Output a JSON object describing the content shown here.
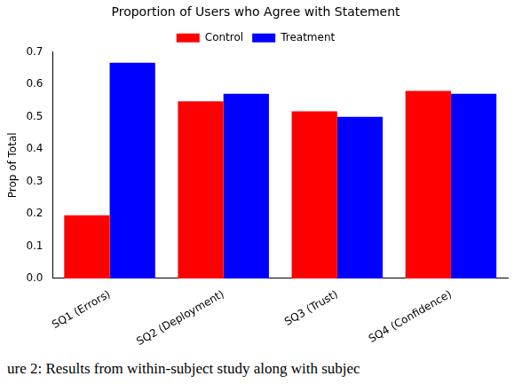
{
  "chart_data": {
    "type": "bar",
    "title": "Proportion of Users who Agree with Statement",
    "y_label": "Prop of Total",
    "categories": [
      "SQ1 (Errors)",
      "SQ2 (Deployment)",
      "SQ3 (Trust)",
      "SQ4 (Confidence)"
    ],
    "series": [
      {
        "name": "Control",
        "color": "#ff0000",
        "values": [
          0.195,
          0.548,
          0.517,
          0.58
        ]
      },
      {
        "name": "Treatment",
        "color": "#0000ff",
        "values": [
          0.667,
          0.571,
          0.5,
          0.571
        ]
      }
    ],
    "ylim": [
      0,
      0.7
    ],
    "yticks": [
      {
        "value": 0,
        "label": "0.0"
      },
      0.1,
      0.2,
      0.3,
      0.4,
      0.5,
      0.6,
      0.7
    ],
    "grid": false,
    "legend": "top"
  },
  "caption": "ure 2: Results from within-subject study along with subjec"
}
